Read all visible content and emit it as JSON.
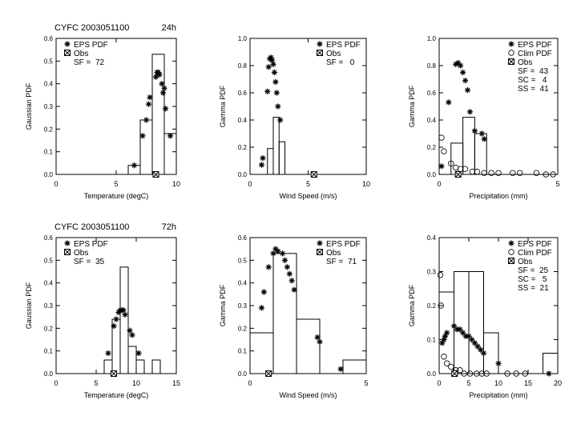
{
  "chart_data": [
    {
      "type": "bar",
      "title": "CYFC   2003051100",
      "lead": "24h",
      "xlabel": "Temperature (degC)",
      "ylabel": "Gaussian PDF",
      "xlim": [
        0,
        10
      ],
      "ylim": [
        0,
        0.6
      ],
      "xticks": [
        "0",
        "5",
        "10"
      ],
      "yticks": [
        "0.0",
        "0.1",
        "0.2",
        "0.3",
        "0.4",
        "0.5",
        "0.6"
      ],
      "legend": [
        "EPS PDF",
        "Obs"
      ],
      "stats": [
        "SF =  72"
      ],
      "bins": [
        [
          6,
          7,
          0.04
        ],
        [
          7,
          8,
          0.24
        ],
        [
          8,
          9,
          0.53
        ],
        [
          9,
          10,
          0.18
        ]
      ],
      "eps": [
        [
          6.5,
          0.04
        ],
        [
          7.2,
          0.17
        ],
        [
          7.5,
          0.24
        ],
        [
          7.7,
          0.31
        ],
        [
          7.8,
          0.34
        ],
        [
          8.3,
          0.43
        ],
        [
          8.4,
          0.45
        ],
        [
          8.5,
          0.45
        ],
        [
          8.6,
          0.44
        ],
        [
          8.8,
          0.4
        ],
        [
          9.0,
          0.38
        ],
        [
          8.9,
          0.36
        ],
        [
          9.1,
          0.29
        ],
        [
          9.5,
          0.17
        ]
      ],
      "clim": [],
      "obs": 8.3
    },
    {
      "type": "bar",
      "title": "",
      "lead": "",
      "xlabel": "Wind Speed (m/s)",
      "ylabel": "Gamma PDF",
      "xlim": [
        0,
        10
      ],
      "ylim": [
        0,
        1.0
      ],
      "xticks": [
        "0",
        "5",
        "10"
      ],
      "yticks": [
        "0.0",
        "0.2",
        "0.4",
        "0.6",
        "0.8",
        "1.0"
      ],
      "legend": [
        "EPS PDF",
        "Obs"
      ],
      "stats": [
        "SF =   0"
      ],
      "bins": [
        [
          1.5,
          2,
          0.19
        ],
        [
          2,
          2.5,
          0.42
        ],
        [
          2.5,
          3,
          0.24
        ]
      ],
      "eps": [
        [
          1.0,
          0.07
        ],
        [
          1.1,
          0.12
        ],
        [
          1.5,
          0.61
        ],
        [
          1.6,
          0.79
        ],
        [
          1.7,
          0.85
        ],
        [
          1.8,
          0.86
        ],
        [
          1.9,
          0.84
        ],
        [
          2.0,
          0.81
        ],
        [
          2.1,
          0.75
        ],
        [
          2.2,
          0.68
        ],
        [
          2.3,
          0.6
        ],
        [
          2.4,
          0.5
        ],
        [
          2.6,
          0.4
        ]
      ],
      "clim": [],
      "obs": 5.5
    },
    {
      "type": "bar",
      "title": "",
      "lead": "",
      "xlabel": "Precipitation (mm)",
      "ylabel": "Gamma PDF",
      "xlim": [
        0,
        5
      ],
      "ylim": [
        0,
        1.0
      ],
      "xticks": [
        "0",
        "5"
      ],
      "yticks": [
        "0.0",
        "0.2",
        "0.4",
        "0.6",
        "0.8",
        "1.0"
      ],
      "legend": [
        "EPS PDF",
        "Clim PDF",
        "Obs"
      ],
      "stats": [
        "SF =  43",
        "SC =   4",
        "SS =  41"
      ],
      "bins": [
        [
          0.5,
          1,
          0.23
        ],
        [
          1,
          1.5,
          0.42
        ],
        [
          1.5,
          2,
          0.3
        ]
      ],
      "eps": [
        [
          0.1,
          0.06
        ],
        [
          0.4,
          0.53
        ],
        [
          0.7,
          0.81
        ],
        [
          0.8,
          0.82
        ],
        [
          0.9,
          0.8
        ],
        [
          1.0,
          0.75
        ],
        [
          1.1,
          0.69
        ],
        [
          1.2,
          0.62
        ],
        [
          1.3,
          0.46
        ],
        [
          1.5,
          0.32
        ],
        [
          1.8,
          0.3
        ],
        [
          1.9,
          0.26
        ]
      ],
      "clim": [
        [
          0.1,
          0.27
        ],
        [
          0.2,
          0.17
        ],
        [
          0.5,
          0.08
        ],
        [
          0.7,
          0.05
        ],
        [
          0.9,
          0.04
        ],
        [
          1.1,
          0.04
        ],
        [
          1.4,
          0.02
        ],
        [
          1.6,
          0.02
        ],
        [
          1.9,
          0.01
        ],
        [
          2.2,
          0.01
        ],
        [
          2.5,
          0.01
        ],
        [
          3.1,
          0.01
        ],
        [
          3.4,
          0.01
        ],
        [
          4.1,
          0.01
        ],
        [
          4.5,
          0.0
        ],
        [
          4.8,
          0.0
        ]
      ],
      "obs": 0.8
    },
    {
      "type": "bar",
      "title": "CYFC   2003051100",
      "lead": "72h",
      "xlabel": "Temperature (degC)",
      "ylabel": "Gaussian PDF",
      "xlim": [
        0,
        15
      ],
      "ylim": [
        0,
        0.6
      ],
      "xticks": [
        "0",
        "5",
        "10",
        "15"
      ],
      "yticks": [
        "0.0",
        "0.1",
        "0.2",
        "0.3",
        "0.4",
        "0.5",
        "0.6"
      ],
      "legend": [
        "EPS PDF",
        "Obs"
      ],
      "stats": [
        "SF =  35"
      ],
      "bins": [
        [
          6,
          7,
          0.06
        ],
        [
          7,
          8,
          0.24
        ],
        [
          8,
          9,
          0.47
        ],
        [
          9,
          10,
          0.12
        ],
        [
          10,
          11,
          0.06
        ],
        [
          12,
          13,
          0.06
        ]
      ],
      "eps": [
        [
          6.5,
          0.09
        ],
        [
          7.2,
          0.21
        ],
        [
          7.5,
          0.24
        ],
        [
          7.8,
          0.27
        ],
        [
          8.0,
          0.28
        ],
        [
          8.2,
          0.28
        ],
        [
          8.4,
          0.28
        ],
        [
          8.6,
          0.26
        ],
        [
          9.2,
          0.19
        ],
        [
          9.5,
          0.17
        ],
        [
          10.3,
          0.09
        ]
      ],
      "clim": [],
      "obs": 7.2
    },
    {
      "type": "bar",
      "title": "",
      "lead": "",
      "xlabel": "Wind Speed (m/s)",
      "ylabel": "Gamma PDF",
      "xlim": [
        0,
        5
      ],
      "ylim": [
        0,
        0.6
      ],
      "xticks": [
        "0",
        "5"
      ],
      "yticks": [
        "0.0",
        "0.1",
        "0.2",
        "0.3",
        "0.4",
        "0.5",
        "0.6"
      ],
      "legend": [
        "EPS PDF",
        "Obs"
      ],
      "stats": [
        "SF =  71"
      ],
      "bins": [
        [
          0,
          1,
          0.18
        ],
        [
          1,
          2,
          0.53
        ],
        [
          2,
          3,
          0.24
        ],
        [
          4,
          5,
          0.06
        ]
      ],
      "eps": [
        [
          0.5,
          0.29
        ],
        [
          0.6,
          0.36
        ],
        [
          0.8,
          0.47
        ],
        [
          1.0,
          0.53
        ],
        [
          1.1,
          0.55
        ],
        [
          1.2,
          0.54
        ],
        [
          1.4,
          0.53
        ],
        [
          1.5,
          0.5
        ],
        [
          1.6,
          0.47
        ],
        [
          1.7,
          0.44
        ],
        [
          1.8,
          0.41
        ],
        [
          1.9,
          0.37
        ],
        [
          2.9,
          0.16
        ],
        [
          3.0,
          0.14
        ],
        [
          3.9,
          0.02
        ]
      ],
      "clim": [],
      "obs": 0.8
    },
    {
      "type": "bar",
      "title": "",
      "lead": "",
      "xlabel": "Precipitation (mm)",
      "ylabel": "Gamma PDF",
      "xlim": [
        0,
        20
      ],
      "ylim": [
        0,
        0.4
      ],
      "xticks": [
        "0",
        "5",
        "10",
        "15",
        "20"
      ],
      "yticks": [
        "0.0",
        "0.1",
        "0.2",
        "0.3",
        "0.4"
      ],
      "legend": [
        "EPS PDF",
        "Clim PDF",
        "Obs"
      ],
      "stats": [
        "SF =  25",
        "SC =   5",
        "SS =  21"
      ],
      "bins": [
        [
          0,
          2.5,
          0.24
        ],
        [
          2.5,
          5,
          0.3
        ],
        [
          5,
          7.5,
          0.3
        ],
        [
          7.5,
          10,
          0.12
        ],
        [
          17.5,
          20,
          0.06
        ]
      ],
      "eps": [
        [
          0.5,
          0.09
        ],
        [
          0.8,
          0.1
        ],
        [
          1.0,
          0.11
        ],
        [
          1.3,
          0.12
        ],
        [
          2.5,
          0.14
        ],
        [
          3.0,
          0.13
        ],
        [
          3.5,
          0.13
        ],
        [
          4.0,
          0.12
        ],
        [
          4.5,
          0.11
        ],
        [
          5.0,
          0.11
        ],
        [
          5.5,
          0.1
        ],
        [
          6.0,
          0.09
        ],
        [
          6.5,
          0.08
        ],
        [
          7.0,
          0.07
        ],
        [
          7.5,
          0.06
        ],
        [
          10.0,
          0.03
        ],
        [
          18.5,
          0.0
        ]
      ],
      "clim": [
        [
          0.2,
          0.29
        ],
        [
          0.3,
          0.2
        ],
        [
          0.8,
          0.05
        ],
        [
          1.3,
          0.03
        ],
        [
          2.0,
          0.02
        ],
        [
          2.8,
          0.01
        ],
        [
          3.5,
          0.01
        ],
        [
          4.2,
          0.0
        ],
        [
          5.2,
          0.0
        ],
        [
          6.3,
          0.0
        ],
        [
          7.2,
          0.0
        ],
        [
          8.0,
          0.0
        ],
        [
          11.5,
          0.0
        ],
        [
          13.0,
          0.0
        ],
        [
          14.5,
          0.0
        ]
      ],
      "obs": 2.6
    }
  ]
}
